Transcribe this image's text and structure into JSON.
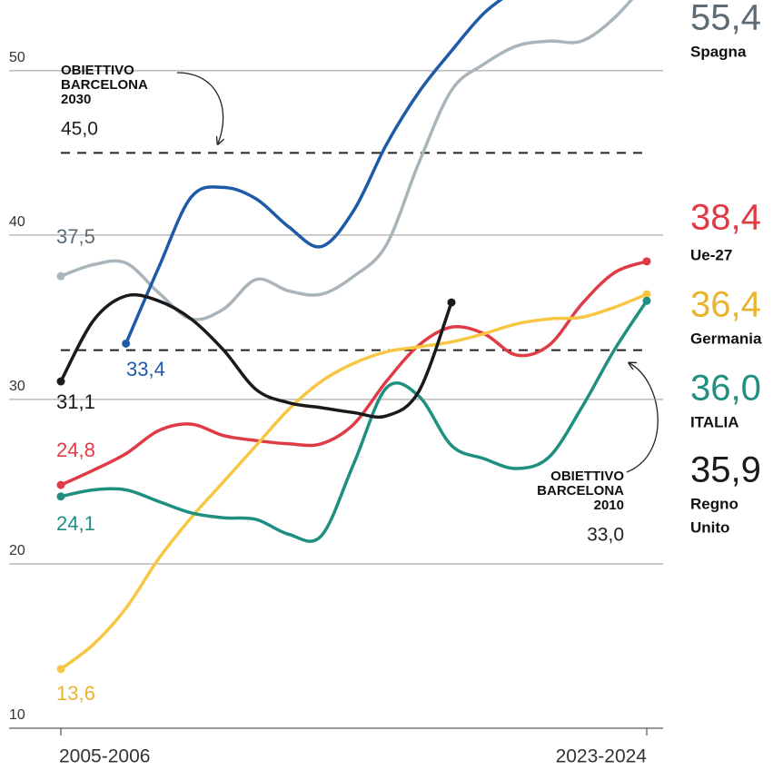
{
  "chart_data": {
    "type": "line",
    "categories": [
      "2005-2006",
      null,
      null,
      null,
      null,
      null,
      null,
      null,
      null,
      null,
      null,
      null,
      null,
      null,
      null,
      null,
      null,
      null,
      "2023-2024"
    ],
    "ylim": [
      10,
      54.3
    ],
    "yticks": [
      10,
      20,
      30,
      40,
      50
    ],
    "reference_lines": [
      {
        "value": 45.0,
        "label_lines": [
          "OBIETTIVO",
          "BARCELONA",
          "2030"
        ],
        "value_label": "45,0"
      },
      {
        "value": 33.0,
        "label_lines": [
          "OBIETTIVO",
          "BARCELONA",
          "2010"
        ],
        "value_label": "33,0"
      }
    ],
    "series": [
      {
        "name": [
          "Spagna"
        ],
        "color": "#a9b4bb",
        "label_color": "#5d6b75",
        "values": [
          37.5,
          38.2,
          38.3,
          36.5,
          34.9,
          35.5,
          37.3,
          36.6,
          36.4,
          37.5,
          39.4,
          44.4,
          48.8,
          50.4,
          51.5,
          51.8,
          51.8,
          53.2,
          55.4
        ],
        "value_labels": [
          "37,5",
          null,
          null,
          null,
          null,
          null,
          null,
          null,
          null,
          null,
          null,
          null,
          null,
          null,
          null,
          null,
          null,
          null,
          "55,4"
        ]
      },
      {
        "color": "#1f5aa8",
        "label_color": "#1f5aa8",
        "values": [
          null,
          null,
          33.4,
          38.0,
          42.3,
          42.9,
          42.2,
          40.5,
          39.3,
          41.5,
          45.5,
          48.7,
          51.2,
          53.5,
          55.0,
          56.5,
          57.5,
          58.0,
          null
        ],
        "value_labels": [
          null,
          null,
          "33,4",
          null,
          null,
          null,
          null,
          null,
          null,
          null,
          null,
          null,
          null,
          null,
          null,
          null,
          null,
          null,
          null
        ]
      },
      {
        "name": [
          "Ue-27"
        ],
        "color": "#e03a45",
        "label_color": "#e03a45",
        "values": [
          24.8,
          25.7,
          26.7,
          28.1,
          28.5,
          27.8,
          27.5,
          27.3,
          27.3,
          28.5,
          31.1,
          33.3,
          34.4,
          34.0,
          32.7,
          33.3,
          35.8,
          37.7,
          38.4
        ],
        "value_labels": [
          "24,8",
          null,
          null,
          null,
          null,
          null,
          null,
          null,
          null,
          null,
          null,
          null,
          null,
          null,
          null,
          null,
          null,
          null,
          "38,4"
        ]
      },
      {
        "name": [
          "Germania"
        ],
        "color": "#f7c744",
        "label_color": "#e9b42e",
        "values": [
          13.6,
          15.1,
          17.3,
          20.3,
          22.8,
          25.0,
          27.2,
          29.4,
          31.1,
          32.2,
          32.9,
          33.2,
          33.5,
          34.0,
          34.6,
          34.9,
          35.0,
          35.6,
          36.4
        ],
        "value_labels": [
          "13,6",
          null,
          null,
          null,
          null,
          null,
          null,
          null,
          null,
          null,
          null,
          null,
          null,
          null,
          null,
          null,
          null,
          null,
          "36,4"
        ]
      },
      {
        "name": [
          "ITALIA"
        ],
        "color": "#1f8f80",
        "label_color": "#1f8f80",
        "values": [
          24.1,
          24.5,
          24.5,
          23.8,
          23.1,
          22.8,
          22.7,
          21.8,
          21.7,
          26.1,
          30.7,
          30.2,
          27.2,
          26.4,
          25.8,
          26.5,
          29.5,
          33.0,
          36.0
        ],
        "value_labels": [
          "24,1",
          null,
          null,
          null,
          null,
          null,
          null,
          null,
          null,
          null,
          null,
          null,
          null,
          null,
          null,
          null,
          null,
          null,
          "36,0"
        ]
      },
      {
        "name": [
          "Regno",
          "Unito"
        ],
        "color": "#1a1a1a",
        "label_color": "#1a1a1a",
        "values": [
          31.1,
          34.8,
          36.3,
          36.0,
          34.9,
          33.0,
          30.6,
          29.8,
          29.5,
          29.2,
          29.0,
          30.5,
          35.9,
          null,
          null,
          null,
          null,
          null,
          null
        ],
        "value_labels": [
          "31,1",
          null,
          null,
          null,
          null,
          null,
          null,
          null,
          null,
          null,
          null,
          null,
          null,
          "35,9",
          null,
          null,
          null,
          null,
          null
        ]
      }
    ]
  }
}
